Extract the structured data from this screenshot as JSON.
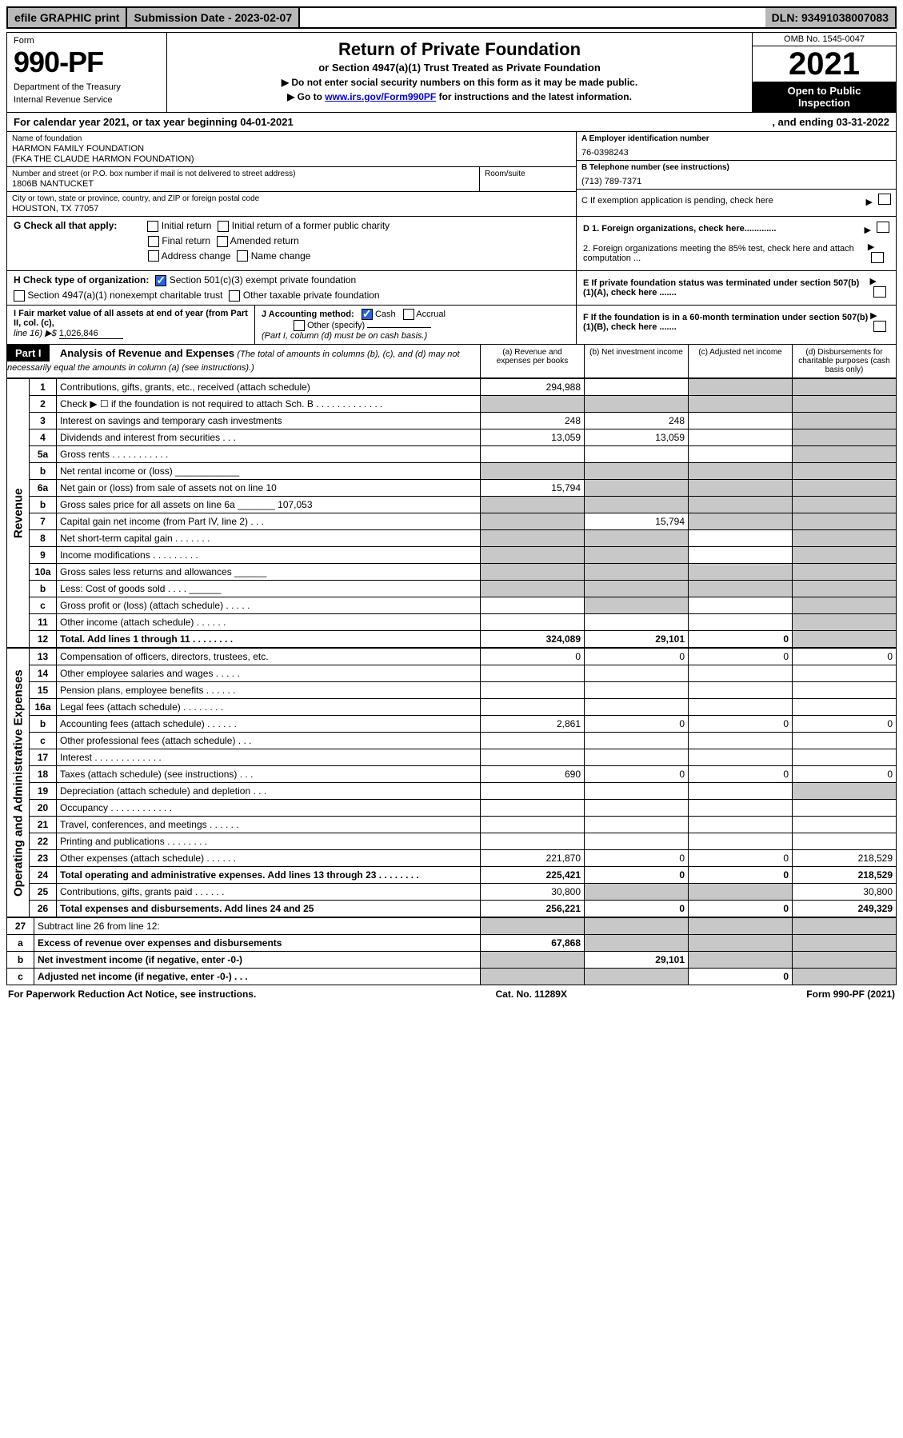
{
  "topbar": {
    "efile": "efile GRAPHIC print",
    "submission_label": "Submission Date - 2023-02-07",
    "dln": "DLN: 93491038007083"
  },
  "header": {
    "form_label": "Form",
    "form_number": "990-PF",
    "dept1": "Department of the Treasury",
    "dept2": "Internal Revenue Service",
    "title": "Return of Private Foundation",
    "subtitle": "or Section 4947(a)(1) Trust Treated as Private Foundation",
    "note1": "▶ Do not enter social security numbers on this form as it may be made public.",
    "note2_pre": "▶ Go to ",
    "note2_link": "www.irs.gov/Form990PF",
    "note2_post": " for instructions and the latest information.",
    "omb": "OMB No. 1545-0047",
    "year": "2021",
    "open1": "Open to Public",
    "open2": "Inspection"
  },
  "cal_year": {
    "text": "For calendar year 2021, or tax year beginning 04-01-2021",
    "ending": ", and ending 03-31-2022"
  },
  "name": {
    "label": "Name of foundation",
    "line1": "HARMON FAMILY FOUNDATION",
    "line2": "(FKA THE CLAUDE HARMON FOUNDATION)"
  },
  "ein": {
    "label": "A Employer identification number",
    "value": "76-0398243"
  },
  "address": {
    "label": "Number and street (or P.O. box number if mail is not delivered to street address)",
    "value": "1806B NANTUCKET",
    "room_label": "Room/suite"
  },
  "phone": {
    "label": "B Telephone number (see instructions)",
    "value": "(713) 789-7371"
  },
  "city": {
    "label": "City or town, state or province, country, and ZIP or foreign postal code",
    "value": "HOUSTON, TX  77057"
  },
  "item_c": "C If exemption application is pending, check here",
  "item_d1": "D 1. Foreign organizations, check here.............",
  "item_d2": "2. Foreign organizations meeting the 85% test, check here and attach computation ...",
  "item_e": "E  If private foundation status was terminated under section 507(b)(1)(A), check here .......",
  "item_f": "F  If the foundation is in a 60-month termination under section 507(b)(1)(B), check here .......",
  "g": {
    "label": "G Check all that apply:",
    "opts": [
      "Initial return",
      "Initial return of a former public charity",
      "Final return",
      "Amended return",
      "Address change",
      "Name change"
    ]
  },
  "h": {
    "label": "H Check type of organization:",
    "opt1": "Section 501(c)(3) exempt private foundation",
    "opt2": "Section 4947(a)(1) nonexempt charitable trust",
    "opt3": "Other taxable private foundation"
  },
  "i": {
    "label": "I Fair market value of all assets at end of year (from Part II, col. (c),",
    "line16": "line 16) ▶$",
    "value": "1,026,846"
  },
  "j": {
    "label": "J Accounting method:",
    "cash": "Cash",
    "accrual": "Accrual",
    "other": "Other (specify)",
    "note": "(Part I, column (d) must be on cash basis.)"
  },
  "part1": {
    "label": "Part I",
    "title": "Analysis of Revenue and Expenses",
    "desc": "(The total of amounts in columns (b), (c), and (d) may not necessarily equal the amounts in column (a) (see instructions).)",
    "col_a": "(a)   Revenue and expenses per books",
    "col_b": "(b)   Net investment income",
    "col_c": "(c)   Adjusted net income",
    "col_d": "(d)   Disbursements for charitable purposes (cash basis only)"
  },
  "side_labels": {
    "revenue": "Revenue",
    "expenses": "Operating and Administrative Expenses"
  },
  "rows": [
    {
      "n": "1",
      "d": "grey",
      "a": "294,988",
      "b": "",
      "c": "grey"
    },
    {
      "n": "2",
      "d": "grey",
      "a": "grey",
      "b": "grey",
      "c": "grey",
      "abgrey": true
    },
    {
      "n": "3",
      "d": "grey",
      "a": "248",
      "b": "248",
      "c": ""
    },
    {
      "n": "4",
      "d": "grey",
      "a": "13,059",
      "b": "13,059",
      "c": ""
    },
    {
      "n": "5a",
      "d": "grey",
      "a": "",
      "b": "",
      "c": ""
    },
    {
      "n": "b",
      "d": "grey",
      "a": "grey",
      "b": "grey",
      "c": "grey",
      "abgrey": true
    },
    {
      "n": "6a",
      "d": "grey",
      "a": "15,794",
      "b": "grey",
      "c": "grey"
    },
    {
      "n": "b",
      "d": "grey",
      "a": "grey",
      "b": "grey",
      "c": "grey",
      "abgrey": true
    },
    {
      "n": "7",
      "d": "grey",
      "a": "grey",
      "b": "15,794",
      "c": "grey"
    },
    {
      "n": "8",
      "d": "grey",
      "a": "grey",
      "b": "grey",
      "c": ""
    },
    {
      "n": "9",
      "d": "grey",
      "a": "grey",
      "b": "grey",
      "c": ""
    },
    {
      "n": "10a",
      "d": "grey",
      "a": "grey",
      "b": "grey",
      "c": "grey",
      "abgrey": true
    },
    {
      "n": "b",
      "d": "grey",
      "a": "grey",
      "b": "grey",
      "c": "grey",
      "abgrey": true
    },
    {
      "n": "c",
      "d": "grey",
      "a": "",
      "b": "grey",
      "c": ""
    },
    {
      "n": "11",
      "d": "grey",
      "a": "",
      "b": "",
      "c": ""
    },
    {
      "n": "12",
      "d": "grey",
      "a": "324,089",
      "b": "29,101",
      "c": "0",
      "bold": true
    }
  ],
  "exp_rows": [
    {
      "n": "13",
      "d": "0",
      "a": "0",
      "b": "0",
      "c": "0"
    },
    {
      "n": "14",
      "d": "",
      "a": "",
      "b": "",
      "c": ""
    },
    {
      "n": "15",
      "d": "",
      "a": "",
      "b": "",
      "c": ""
    },
    {
      "n": "16a",
      "d": "",
      "a": "",
      "b": "",
      "c": ""
    },
    {
      "n": "b",
      "d": "0",
      "a": "2,861",
      "b": "0",
      "c": "0"
    },
    {
      "n": "c",
      "d": "",
      "a": "",
      "b": "",
      "c": ""
    },
    {
      "n": "17",
      "d": "",
      "a": "",
      "b": "",
      "c": ""
    },
    {
      "n": "18",
      "d": "0",
      "a": "690",
      "b": "0",
      "c": "0"
    },
    {
      "n": "19",
      "d": "grey",
      "a": "",
      "b": "",
      "c": ""
    },
    {
      "n": "20",
      "d": "",
      "a": "",
      "b": "",
      "c": ""
    },
    {
      "n": "21",
      "d": "",
      "a": "",
      "b": "",
      "c": ""
    },
    {
      "n": "22",
      "d": "",
      "a": "",
      "b": "",
      "c": ""
    },
    {
      "n": "23",
      "d": "218,529",
      "a": "221,870",
      "b": "0",
      "c": "0"
    },
    {
      "n": "24",
      "d": "218,529",
      "a": "225,421",
      "b": "0",
      "c": "0",
      "bold": true
    },
    {
      "n": "25",
      "d": "30,800",
      "a": "30,800",
      "b": "grey",
      "c": "grey"
    },
    {
      "n": "26",
      "d": "249,329",
      "a": "256,221",
      "b": "0",
      "c": "0",
      "bold": true
    }
  ],
  "bottom_rows": [
    {
      "n": "27",
      "d": "grey",
      "a": "grey",
      "b": "grey",
      "c": "grey",
      "abgrey": true
    },
    {
      "n": "a",
      "d": "grey",
      "a": "67,868",
      "b": "grey",
      "c": "grey",
      "bold": true
    },
    {
      "n": "b",
      "d": "grey",
      "a": "grey",
      "b": "29,101",
      "c": "grey",
      "bold": true
    },
    {
      "n": "c",
      "d": "grey",
      "a": "grey",
      "b": "grey",
      "c": "0",
      "bold": true
    }
  ],
  "footer": {
    "left": "For Paperwork Reduction Act Notice, see instructions.",
    "mid": "Cat. No. 11289X",
    "right": "Form 990-PF (2021)"
  }
}
